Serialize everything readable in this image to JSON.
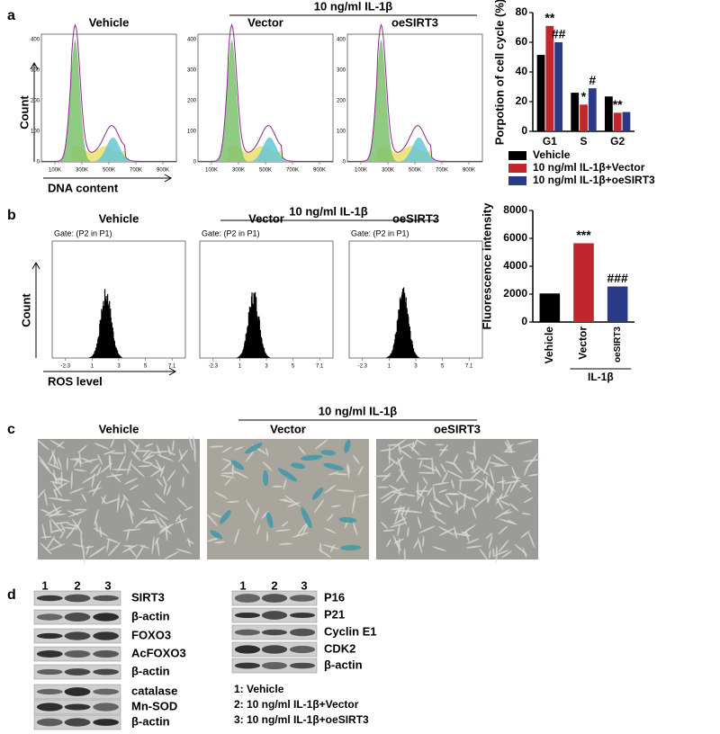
{
  "panels": {
    "a": {
      "label": "a",
      "group_title": "10 ng/ml IL-1β",
      "histograms": [
        {
          "title": "Vehicle"
        },
        {
          "title": "Vector"
        },
        {
          "title": "oeSIRT3"
        }
      ],
      "y_axis_label": "Count",
      "x_axis_label": "DNA content",
      "y_tick_labels": [
        "400",
        "300",
        "200",
        "100",
        "0"
      ],
      "x_tick_labels": [
        "100K",
        "300K",
        "500K",
        "700K",
        "900K"
      ]
    },
    "b": {
      "label": "b",
      "group_title": "10 ng/ml IL-1β",
      "histograms": [
        {
          "title": "Vehicle"
        },
        {
          "title": "Vector"
        },
        {
          "title": "oeSIRT3"
        }
      ],
      "gate": "Gate: (P2 in P1)",
      "y_axis_label": "Count",
      "x_axis_label": "ROS level",
      "x_tick_labels": [
        "-2.3",
        "1",
        "3",
        "5",
        "7.1"
      ]
    },
    "c": {
      "label": "c",
      "group_title": "10 ng/ml IL-1β",
      "titles": [
        "Vehicle",
        "Vector",
        "oeSIRT3"
      ]
    },
    "d": {
      "label": "d",
      "lanes": [
        "1",
        "2",
        "3"
      ],
      "left_blots": [
        "SIRT3",
        "β-actin",
        "FOXO3",
        "AcFOXO3",
        "β-actin",
        "catalase",
        "Mn-SOD",
        "β-actin"
      ],
      "right_blots": [
        "P16",
        "P21",
        "Cyclin E1",
        "CDK2",
        "β-actin"
      ],
      "key": [
        "1: Vehicle",
        "2: 10 ng/ml IL-1β+Vector",
        "3: 10 ng/ml IL-1β+oeSIRT3"
      ]
    }
  },
  "chart_data": [
    {
      "type": "grouped-bar",
      "y_label": "Porpotion of cell cycle (%)",
      "categories": [
        "G1",
        "S",
        "G2"
      ],
      "ylim": [
        0,
        80
      ],
      "yticks": [
        0,
        20,
        40,
        60,
        80
      ],
      "legend": "bottom",
      "series": [
        {
          "name": "Vehicle",
          "color": "#000000",
          "values": [
            51.5,
            26,
            23.5
          ]
        },
        {
          "name": "10 ng/ml IL-1β+Vector",
          "color": "#c0272d",
          "values": [
            71,
            18,
            12.5
          ],
          "significance": [
            "**",
            "*",
            "**"
          ]
        },
        {
          "name": "10 ng/ml IL-1β+oeSIRT3",
          "color": "#2b3a86",
          "values": [
            60,
            29,
            13
          ],
          "significance": [
            "##",
            "#",
            null
          ]
        }
      ]
    },
    {
      "type": "bar",
      "y_label": "Fluorescence intensity",
      "categories": [
        "Vehicle",
        "Vector",
        "oeSIRT3"
      ],
      "group_label": "IL-1β",
      "ylim": [
        0,
        8000
      ],
      "yticks": [
        0,
        2000,
        4000,
        6000,
        8000
      ],
      "values": [
        2050,
        5650,
        2550
      ],
      "colors": [
        "#000000",
        "#c0272d",
        "#2b3a86"
      ],
      "significance": [
        null,
        "***",
        "###"
      ]
    }
  ]
}
